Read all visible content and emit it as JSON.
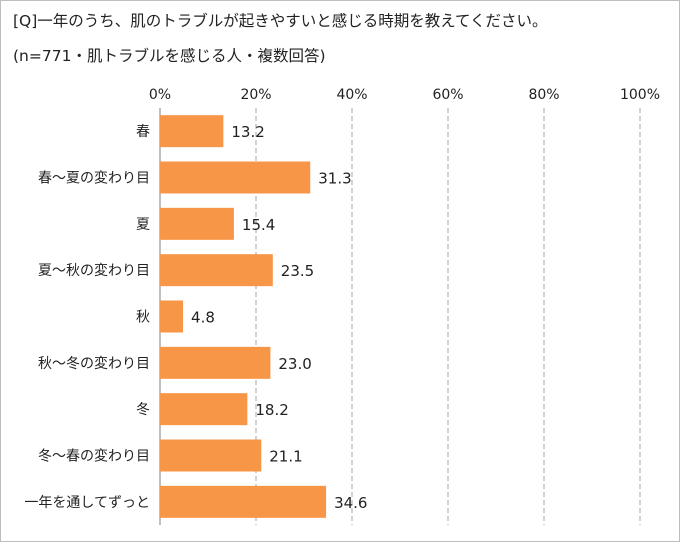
{
  "title": "[Q]一年のうち、肌のトラブルが起きやすいと感じる時期を教えてください。",
  "subtitle": "(n=771・肌トラブルを感じる人・複数回答)",
  "colors": {
    "bar": "#f79646",
    "grid": "#a6a6a6",
    "text": "#222222"
  },
  "chart_data": {
    "type": "bar",
    "orientation": "horizontal",
    "categories": [
      "春",
      "春～夏の変わり目",
      "夏",
      "夏～秋の変わり目",
      "秋",
      "秋～冬の変わり目",
      "冬",
      "冬～春の変わり目",
      "一年を通してずっと"
    ],
    "values": [
      13.2,
      31.3,
      15.4,
      23.5,
      4.8,
      23.0,
      18.2,
      21.1,
      34.6
    ],
    "value_labels": [
      "13.2",
      "31.3",
      "15.4",
      "23.5",
      "4.8",
      "23.0",
      "18.2",
      "21.1",
      "34.6"
    ],
    "xlim": [
      0,
      100
    ],
    "ticks": [
      0,
      20,
      40,
      60,
      80,
      100
    ],
    "tick_labels": [
      "0%",
      "20%",
      "40%",
      "60%",
      "80%",
      "100%"
    ],
    "axis_position": "top",
    "grid": true,
    "legend": false
  }
}
